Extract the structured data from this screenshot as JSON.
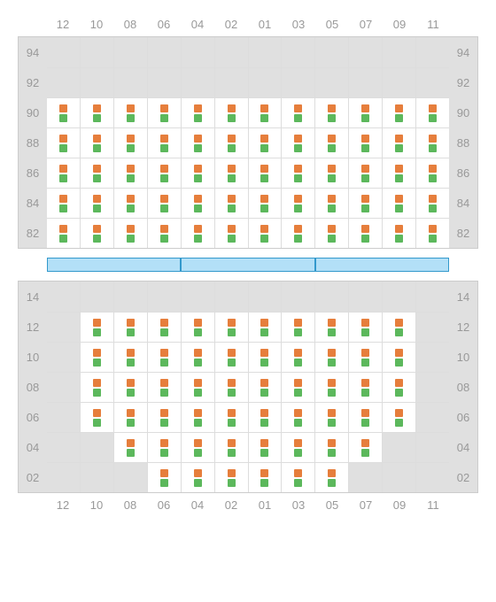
{
  "columns": [
    "12",
    "10",
    "08",
    "06",
    "04",
    "02",
    "01",
    "03",
    "05",
    "07",
    "09",
    "11"
  ],
  "topSection": {
    "rows": [
      {
        "label": "94",
        "cells": [
          0,
          0,
          0,
          0,
          0,
          0,
          0,
          0,
          0,
          0,
          0,
          0
        ]
      },
      {
        "label": "92",
        "cells": [
          0,
          0,
          0,
          0,
          0,
          0,
          0,
          0,
          0,
          0,
          0,
          0
        ]
      },
      {
        "label": "90",
        "cells": [
          1,
          1,
          1,
          1,
          1,
          1,
          1,
          1,
          1,
          1,
          1,
          1
        ]
      },
      {
        "label": "88",
        "cells": [
          1,
          1,
          1,
          1,
          1,
          1,
          1,
          1,
          1,
          1,
          1,
          1
        ]
      },
      {
        "label": "86",
        "cells": [
          1,
          1,
          1,
          1,
          1,
          1,
          1,
          1,
          1,
          1,
          1,
          1
        ]
      },
      {
        "label": "84",
        "cells": [
          1,
          1,
          1,
          1,
          1,
          1,
          1,
          1,
          1,
          1,
          1,
          1
        ]
      },
      {
        "label": "82",
        "cells": [
          1,
          1,
          1,
          1,
          1,
          1,
          1,
          1,
          1,
          1,
          1,
          1
        ]
      }
    ]
  },
  "bottomSection": {
    "rows": [
      {
        "label": "14",
        "cells": [
          0,
          0,
          0,
          0,
          0,
          0,
          0,
          0,
          0,
          0,
          0,
          0
        ]
      },
      {
        "label": "12",
        "cells": [
          0,
          1,
          1,
          1,
          1,
          1,
          1,
          1,
          1,
          1,
          1,
          0
        ]
      },
      {
        "label": "10",
        "cells": [
          0,
          1,
          1,
          1,
          1,
          1,
          1,
          1,
          1,
          1,
          1,
          0
        ]
      },
      {
        "label": "08",
        "cells": [
          0,
          1,
          1,
          1,
          1,
          1,
          1,
          1,
          1,
          1,
          1,
          0
        ]
      },
      {
        "label": "06",
        "cells": [
          0,
          1,
          1,
          1,
          1,
          1,
          1,
          1,
          1,
          1,
          1,
          0
        ]
      },
      {
        "label": "04",
        "cells": [
          0,
          0,
          1,
          1,
          1,
          1,
          1,
          1,
          1,
          1,
          0,
          0
        ]
      },
      {
        "label": "02",
        "cells": [
          0,
          0,
          0,
          1,
          1,
          1,
          1,
          1,
          1,
          0,
          0,
          0
        ]
      }
    ]
  },
  "barCount": 3,
  "colors": {
    "orange": "#e67e3c",
    "green": "#5cb85c",
    "emptyCell": "#e0e0e0",
    "filledCell": "#ffffff",
    "gridLine": "#dddddd",
    "label": "#999999",
    "barFill": "#b3e0f7",
    "barBorder": "#3399cc"
  }
}
